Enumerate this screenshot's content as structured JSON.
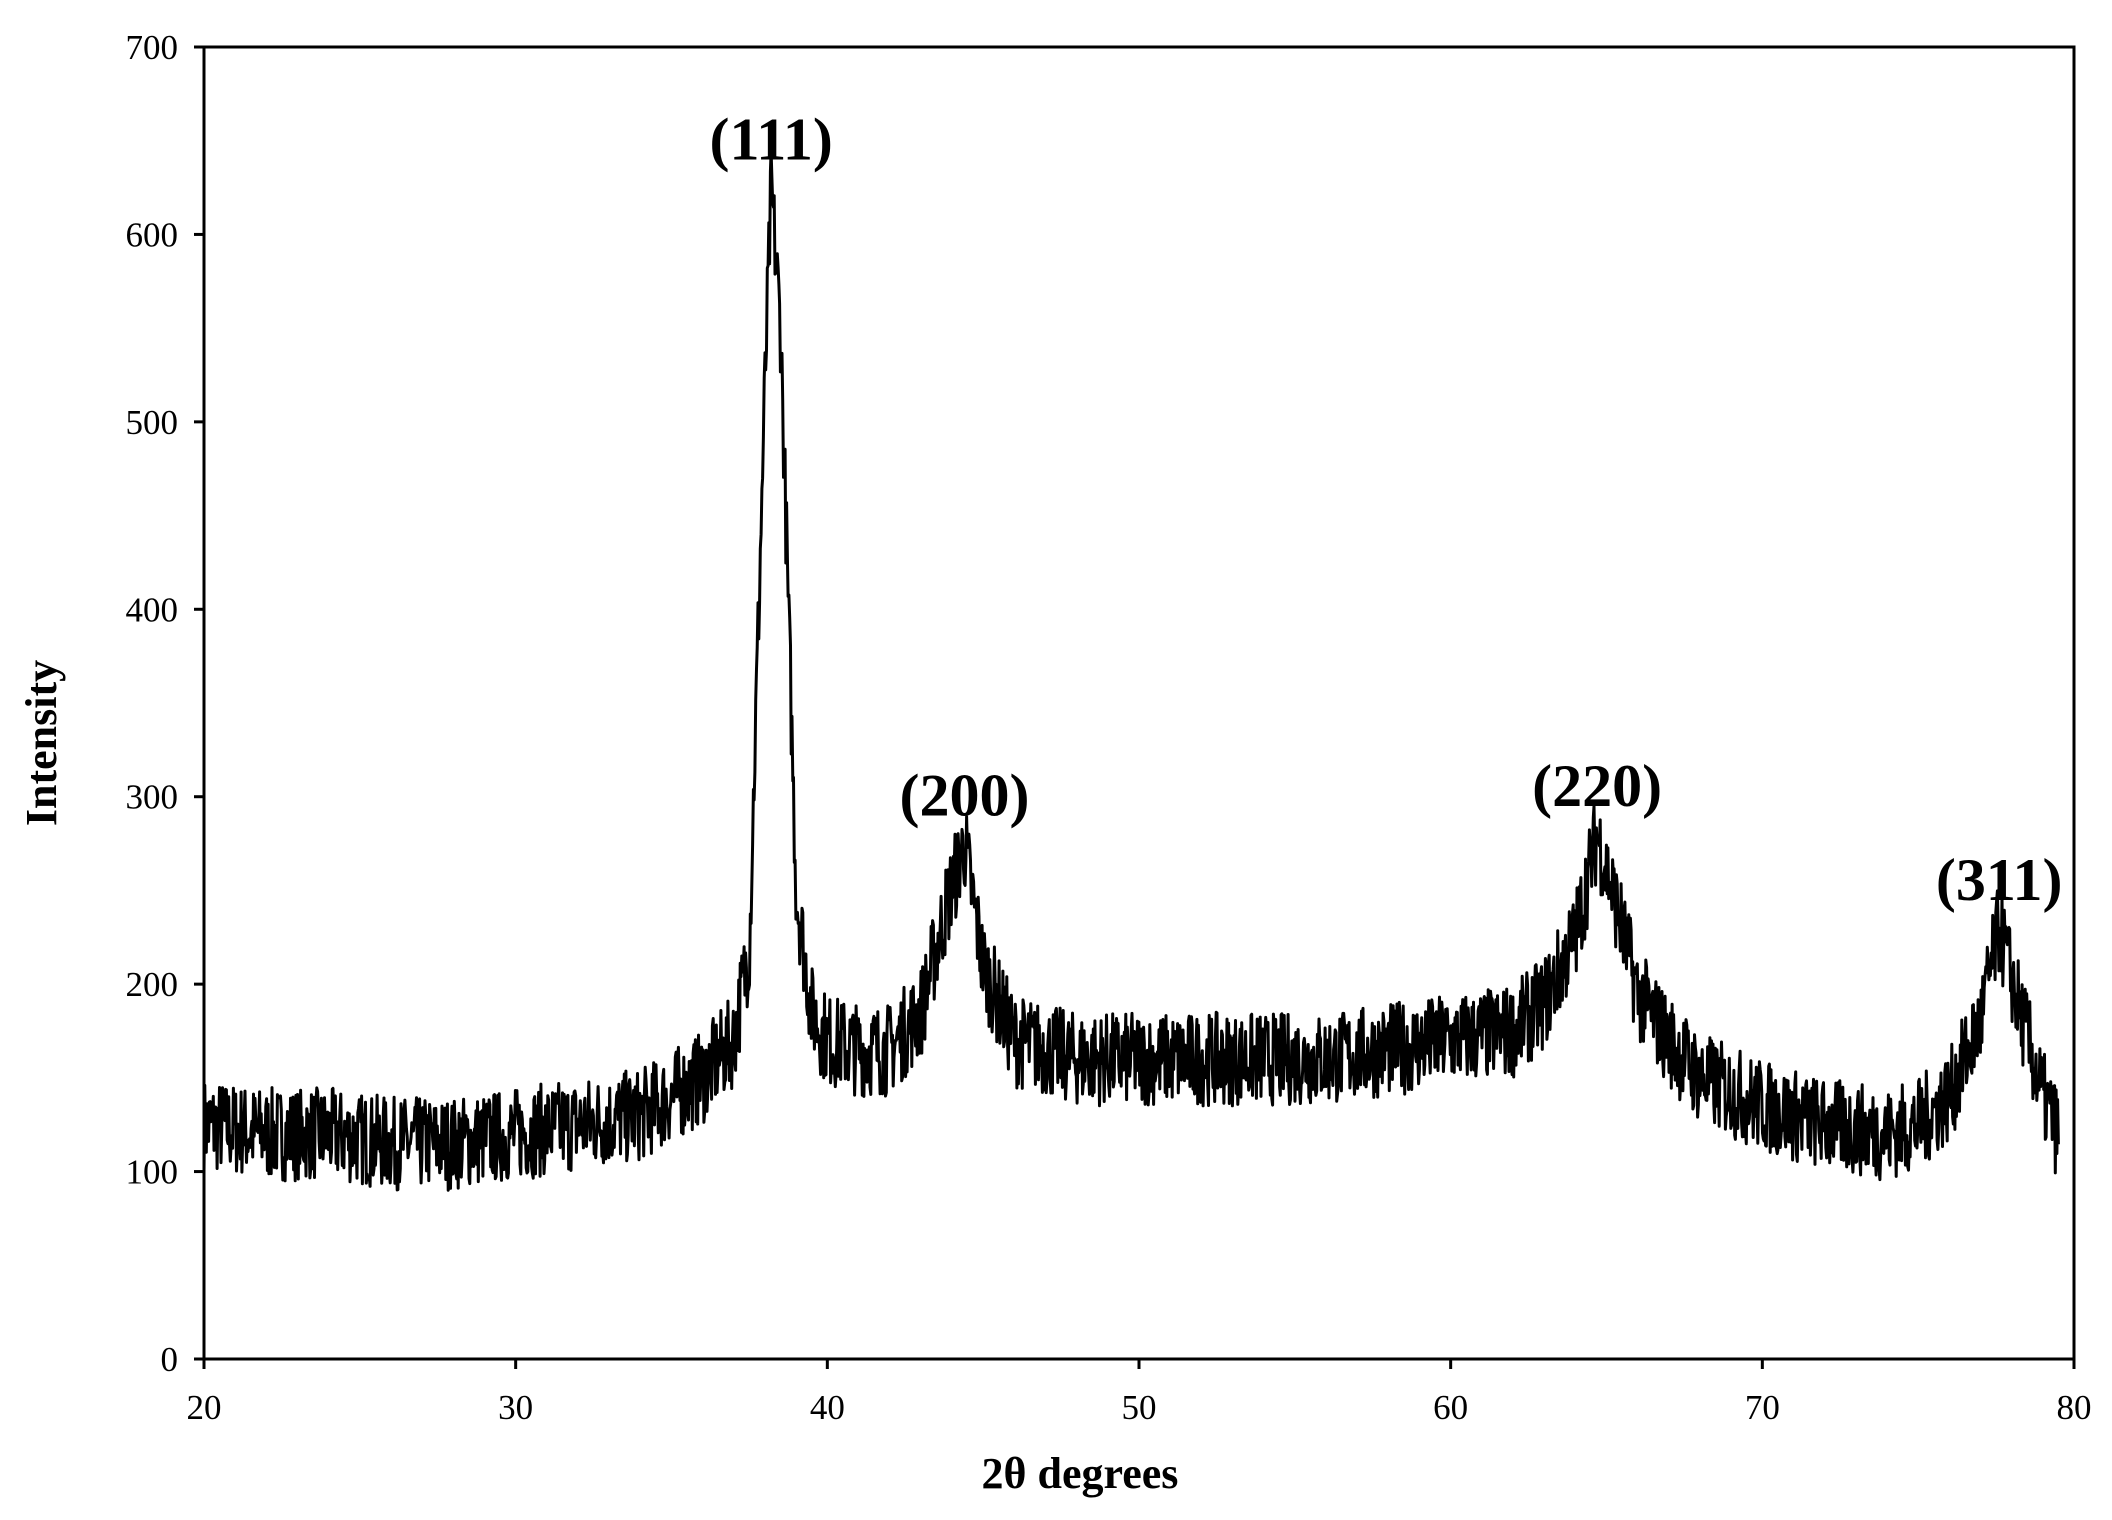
{
  "chart_data": {
    "type": "line",
    "title": "",
    "xlabel": "2θ degrees",
    "ylabel": "Intensity",
    "xlim": [
      20,
      80
    ],
    "ylim": [
      0,
      700
    ],
    "xticks": [
      20,
      30,
      40,
      50,
      60,
      70,
      80
    ],
    "yticks": [
      0,
      100,
      200,
      300,
      400,
      500,
      600,
      700
    ],
    "grid": false,
    "legend": "none",
    "line_color": "#000000",
    "x_range": [
      20,
      79.5
    ],
    "peaks": [
      {
        "label": "(111)",
        "x": 38.2,
        "y": 625
      },
      {
        "label": "(200)",
        "x": 44.4,
        "y": 275
      },
      {
        "label": "(220)",
        "x": 64.7,
        "y": 280
      },
      {
        "label": "(311)",
        "x": 77.6,
        "y": 230
      }
    ],
    "series": [
      {
        "x": [
          20,
          22,
          24,
          26,
          28,
          30,
          32,
          34,
          35,
          36,
          37,
          37.5,
          38,
          38.2,
          38.5,
          39,
          39.5,
          40,
          41,
          42,
          43,
          43.8,
          44.4,
          45,
          46,
          47,
          48,
          50,
          52,
          54,
          56,
          58,
          60,
          62,
          63,
          64,
          64.7,
          65.5,
          66,
          67,
          68,
          70,
          72,
          74,
          75,
          76,
          77,
          77.6,
          78.2,
          79,
          79.5
        ],
        "y": [
          125,
          120,
          120,
          115,
          115,
          120,
          125,
          130,
          140,
          150,
          170,
          220,
          520,
          625,
          550,
          250,
          185,
          170,
          165,
          165,
          185,
          240,
          275,
          210,
          170,
          165,
          160,
          160,
          160,
          160,
          160,
          165,
          170,
          175,
          190,
          225,
          280,
          230,
          195,
          170,
          150,
          135,
          125,
          120,
          125,
          140,
          180,
          230,
          190,
          140,
          120
        ]
      }
    ]
  }
}
